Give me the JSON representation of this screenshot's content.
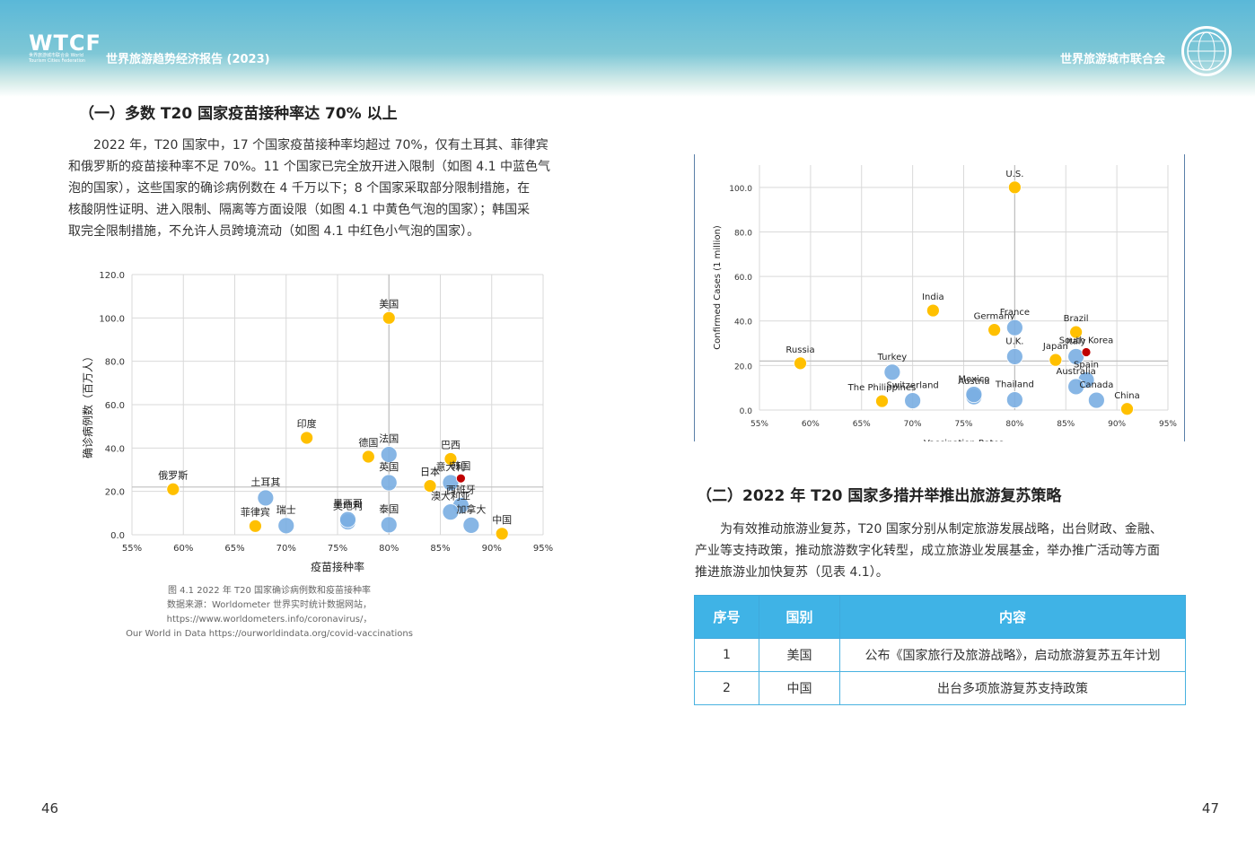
{
  "header": {
    "logo": "WTCF",
    "logo_sub": "世界旅游城市联合会 World Tourism Cities Federation",
    "left_title": "世界旅游趋势经济报告 (2023)",
    "right_title": "世界旅游城市联合会"
  },
  "left": {
    "section_heading": "（一）多数 T20 国家疫苗接种率达 70% 以上",
    "paragraph_lines": [
      "2022 年，T20 国家中，17 个国家疫苗接种率均超过 70%，仅有土耳其、菲律宾",
      "和俄罗斯的疫苗接种率不足 70%。11 个国家已完全放开进入限制（如图 4.1 中蓝色气",
      "泡的国家），这些国家的确诊病例数在 4 千万以下；8 个国家采取部分限制措施，在",
      "核酸阴性证明、进入限制、隔离等方面设限（如图 4.1 中黄色气泡的国家）；韩国采",
      "取完全限制措施，不允许人员跨境流动（如图 4.1 中红色小气泡的国家）。"
    ],
    "caption_lines": [
      "图 4.1 2022 年 T20 国家确诊病例数和疫苗接种率",
      "数据来源：Worldometer 世界实时统计数据网站，",
      "https://www.worldometers.info/coronavirus/，",
      "Our World in Data  https://ourworldindata.org/covid-vaccinations"
    ],
    "page_number": "46"
  },
  "right": {
    "section_heading": "（二）2022 年 T20 国家多措并举推出旅游复苏策略",
    "paragraph_lines": [
      "为有效推动旅游业复苏，T20 国家分别从制定旅游发展战略，出台财政、金融、",
      "产业等支持政策，推动旅游数字化转型，成立旅游业发展基金，举办推广活动等方面",
      "推进旅游业加快复苏（见表 4.1）。"
    ],
    "table": {
      "headers": [
        "序号",
        "国别",
        "内容"
      ],
      "rows": [
        [
          "1",
          "美国",
          "公布《国家旅行及旅游战略》，启动旅游复苏五年计划"
        ],
        [
          "2",
          "中国",
          "出台多项旅游复苏支持政策"
        ]
      ]
    },
    "page_number": "47"
  },
  "colors": {
    "blue": "#7aaee2",
    "yellow": "#ffc000",
    "red": "#c00000",
    "grid": "#d9d9d9",
    "header": "#5ab8d8",
    "table_head": "#3fb3e6"
  },
  "chart_data": [
    {
      "type": "scatter",
      "title": "",
      "xlabel": "疫苗接种率",
      "ylabel": "确诊病例数（百万人）",
      "x_ticks": [
        "55%",
        "60%",
        "65%",
        "70%",
        "75%",
        "80%",
        "85%",
        "90%",
        "95%"
      ],
      "y_ticks": [
        "0.0",
        "20.0",
        "40.0",
        "60.0",
        "80.0",
        "100.0",
        "120.0"
      ],
      "xlim": [
        55,
        95
      ],
      "ylim": [
        0,
        120
      ],
      "ref_lines": {
        "x": 80,
        "y": 22
      },
      "grid": true,
      "points": [
        {
          "label": "美国",
          "x": 80,
          "y": 100,
          "color": "yellow"
        },
        {
          "label": "印度",
          "x": 72,
          "y": 44.7,
          "color": "yellow"
        },
        {
          "label": "德国",
          "x": 78,
          "y": 36,
          "color": "yellow"
        },
        {
          "label": "法国",
          "x": 80,
          "y": 37,
          "color": "blue"
        },
        {
          "label": "英国",
          "x": 80,
          "y": 24,
          "color": "blue"
        },
        {
          "label": "巴西",
          "x": 86,
          "y": 35,
          "color": "yellow"
        },
        {
          "label": "日本",
          "x": 84,
          "y": 22.5,
          "color": "yellow"
        },
        {
          "label": "意大利",
          "x": 86,
          "y": 24,
          "color": "blue"
        },
        {
          "label": "韩国",
          "x": 87,
          "y": 26,
          "color": "red"
        },
        {
          "label": "西班牙",
          "x": 87,
          "y": 13.5,
          "color": "blue"
        },
        {
          "label": "俄罗斯",
          "x": 59,
          "y": 21,
          "color": "yellow"
        },
        {
          "label": "土耳其",
          "x": 68,
          "y": 17,
          "color": "blue"
        },
        {
          "label": "菲律宾",
          "x": 67,
          "y": 4,
          "color": "yellow"
        },
        {
          "label": "瑞士",
          "x": 70,
          "y": 4.2,
          "color": "blue"
        },
        {
          "label": "奥地利",
          "x": 76,
          "y": 6,
          "color": "blue"
        },
        {
          "label": "墨西哥",
          "x": 76,
          "y": 7,
          "color": "blue"
        },
        {
          "label": "泰国",
          "x": 80,
          "y": 4.6,
          "color": "blue"
        },
        {
          "label": "澳大利亚",
          "x": 86,
          "y": 10.5,
          "color": "blue"
        },
        {
          "label": "加拿大",
          "x": 88,
          "y": 4.4,
          "color": "blue"
        },
        {
          "label": "中国",
          "x": 91,
          "y": 0.5,
          "color": "yellow"
        }
      ]
    },
    {
      "type": "scatter",
      "title": "",
      "xlabel": "Vaccination Rates",
      "ylabel": "Confirmed Cases (1 million)",
      "x_ticks": [
        "55%",
        "60%",
        "65%",
        "70%",
        "75%",
        "80%",
        "85%",
        "90%",
        "95%"
      ],
      "y_ticks": [
        "0.0",
        "20.0",
        "40.0",
        "60.0",
        "80.0",
        "100.0"
      ],
      "xlim": [
        55,
        95
      ],
      "ylim": [
        0,
        110
      ],
      "ref_lines": {
        "x": 80,
        "y": 22
      },
      "grid": true,
      "points": [
        {
          "label": "U.S.",
          "x": 80,
          "y": 100,
          "color": "yellow"
        },
        {
          "label": "India",
          "x": 72,
          "y": 44.7,
          "color": "yellow"
        },
        {
          "label": "Germany",
          "x": 78,
          "y": 36,
          "color": "yellow"
        },
        {
          "label": "France",
          "x": 80,
          "y": 37,
          "color": "blue"
        },
        {
          "label": "U.K.",
          "x": 80,
          "y": 24,
          "color": "blue"
        },
        {
          "label": "Brazil",
          "x": 86,
          "y": 35,
          "color": "yellow"
        },
        {
          "label": "Japan",
          "x": 84,
          "y": 22.5,
          "color": "yellow"
        },
        {
          "label": "Italy",
          "x": 86,
          "y": 24,
          "color": "blue"
        },
        {
          "label": "South Korea",
          "x": 87,
          "y": 26,
          "color": "red"
        },
        {
          "label": "Spain",
          "x": 87,
          "y": 13.5,
          "color": "blue"
        },
        {
          "label": "Russia",
          "x": 59,
          "y": 21,
          "color": "yellow"
        },
        {
          "label": "Turkey",
          "x": 68,
          "y": 17,
          "color": "blue"
        },
        {
          "label": "The Philippines",
          "x": 67,
          "y": 4,
          "color": "yellow"
        },
        {
          "label": "Switzerland",
          "x": 70,
          "y": 4.2,
          "color": "blue"
        },
        {
          "label": "Austria",
          "x": 76,
          "y": 6,
          "color": "blue"
        },
        {
          "label": "Mexico",
          "x": 76,
          "y": 7,
          "color": "blue"
        },
        {
          "label": "Thailand",
          "x": 80,
          "y": 4.6,
          "color": "blue"
        },
        {
          "label": "Australia",
          "x": 86,
          "y": 10.5,
          "color": "blue"
        },
        {
          "label": "Canada",
          "x": 88,
          "y": 4.4,
          "color": "blue"
        },
        {
          "label": "China",
          "x": 91,
          "y": 0.5,
          "color": "yellow"
        }
      ]
    }
  ]
}
